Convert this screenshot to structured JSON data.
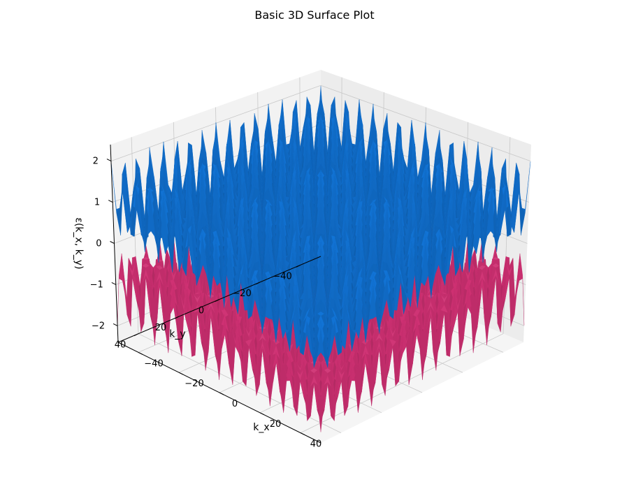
{
  "chart_data": {
    "type": "surface",
    "title": "Basic 3D Surface Plot",
    "xlabel": "k_x",
    "ylabel": "k_y",
    "zlabel": "ε(k_x, k_y)",
    "xlim": [
      -50,
      50
    ],
    "ylim": [
      -50,
      50
    ],
    "zlim": [
      -2.4,
      2.4
    ],
    "xticks": [
      -40,
      -20,
      0,
      20,
      40
    ],
    "yticks": [
      -40,
      -20,
      0,
      20,
      40
    ],
    "zticks": [
      -2,
      -1,
      0,
      1,
      2
    ],
    "xtick_labels": [
      "−40",
      "−20",
      "0",
      "20",
      "40"
    ],
    "ytick_labels": [
      "−40",
      "−20",
      "0",
      "20",
      "40"
    ],
    "ztick_labels": [
      "−2",
      "−1",
      "0",
      "1",
      "2"
    ],
    "grid": true,
    "series": [
      {
        "band": "upper",
        "color": "#1e88e5",
        "z_range": [
          0,
          2.2
        ]
      },
      {
        "band": "lower",
        "color": "#d8457f",
        "z_range": [
          -2.2,
          0
        ]
      }
    ],
    "view": {
      "elevation_deg": 20,
      "azimuth_deg": 45
    }
  }
}
